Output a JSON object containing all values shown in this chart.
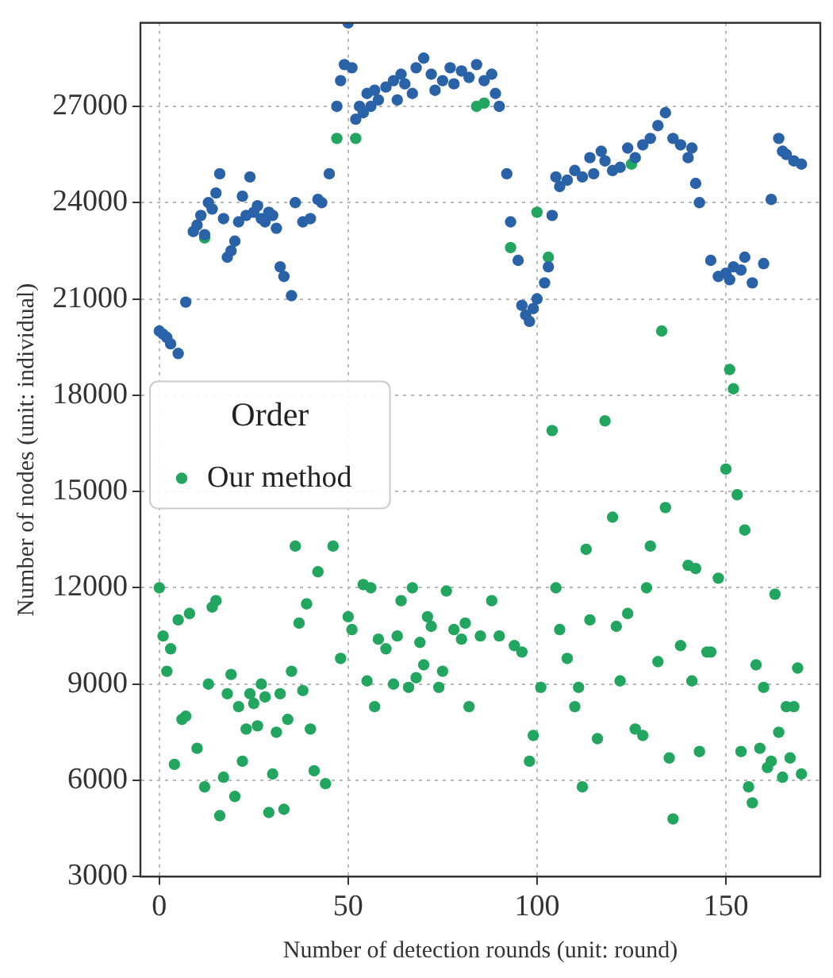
{
  "chart_data": {
    "type": "scatter",
    "xlabel": "Number of detection rounds (unit: round)",
    "ylabel": "Number of nodes (unit: individual)",
    "legend_title": "Order",
    "legend": "left",
    "grid": true,
    "marker": "circle",
    "xlim": [
      -5,
      175
    ],
    "xticks": [
      0,
      50,
      100,
      150
    ],
    "ylim": [
      3000,
      29600
    ],
    "yticks": [
      3000,
      6000,
      9000,
      12000,
      15000,
      18000,
      21000,
      24000,
      27000
    ],
    "series": [
      {
        "color": "#2a62a8",
        "x": [
          0,
          1,
          2,
          3,
          5,
          7,
          9,
          10,
          11,
          12,
          13,
          14,
          15,
          16,
          17,
          18,
          19,
          20,
          21,
          22,
          23,
          24,
          25,
          26,
          27,
          28,
          29,
          30,
          31,
          32,
          33,
          35,
          36,
          38,
          40,
          42,
          43,
          45,
          47,
          48,
          49,
          50,
          51,
          52,
          53,
          54,
          55,
          56,
          57,
          58,
          60,
          62,
          63,
          64,
          65,
          67,
          68,
          70,
          72,
          73,
          75,
          77,
          78,
          80,
          82,
          84,
          86,
          88,
          89,
          90,
          92,
          93,
          95,
          96,
          97,
          98,
          99,
          100,
          102,
          103,
          104,
          105,
          106,
          108,
          110,
          112,
          114,
          115,
          117,
          118,
          120,
          122,
          124,
          126,
          128,
          130,
          132,
          134,
          136,
          138,
          140,
          141,
          142,
          143,
          146,
          148,
          150,
          151,
          152,
          154,
          155,
          157,
          160,
          162,
          164,
          165,
          166,
          168,
          170
        ],
        "values": [
          20000,
          19900,
          19800,
          19600,
          19300,
          20900,
          23100,
          23300,
          23600,
          23000,
          24000,
          23800,
          24300,
          24900,
          23500,
          22300,
          22500,
          22800,
          23400,
          24200,
          23600,
          24800,
          23700,
          23900,
          23500,
          23400,
          23700,
          23600,
          23200,
          22000,
          21700,
          21100,
          24000,
          23400,
          23500,
          24100,
          24000,
          24900,
          27000,
          27800,
          28300,
          29600,
          28200,
          26600,
          27000,
          26800,
          27400,
          27000,
          27500,
          27200,
          27600,
          27800,
          27200,
          28000,
          27700,
          27400,
          28200,
          28500,
          28000,
          27500,
          27800,
          28200,
          27700,
          28100,
          27900,
          28300,
          27800,
          28000,
          27400,
          27000,
          24900,
          23400,
          22200,
          20800,
          20500,
          20300,
          20700,
          21000,
          21500,
          22000,
          23600,
          24800,
          24500,
          24700,
          25000,
          24800,
          25400,
          24900,
          25600,
          25300,
          25000,
          25100,
          25700,
          25400,
          25800,
          26000,
          26400,
          26800,
          26000,
          25800,
          25400,
          25700,
          24600,
          24000,
          22200,
          21700,
          21800,
          21600,
          22000,
          21900,
          22300,
          21500,
          22100,
          24100,
          26000,
          25600,
          25500,
          25300,
          25200
        ]
      },
      {
        "name": "Our method",
        "color": "#22a55e",
        "x": [
          0,
          1,
          2,
          3,
          4,
          5,
          6,
          7,
          8,
          10,
          12,
          12,
          13,
          14,
          15,
          16,
          17,
          18,
          19,
          20,
          21,
          22,
          23,
          24,
          25,
          26,
          27,
          28,
          29,
          30,
          31,
          32,
          33,
          34,
          35,
          36,
          37,
          38,
          39,
          40,
          41,
          42,
          44,
          46,
          47,
          48,
          50,
          51,
          52,
          54,
          55,
          56,
          57,
          58,
          60,
          62,
          63,
          64,
          66,
          67,
          68,
          69,
          70,
          71,
          72,
          74,
          75,
          76,
          78,
          80,
          81,
          82,
          84,
          85,
          86,
          88,
          90,
          93,
          94,
          96,
          98,
          99,
          100,
          101,
          103,
          104,
          105,
          106,
          108,
          110,
          111,
          112,
          113,
          114,
          116,
          118,
          120,
          121,
          122,
          124,
          125,
          126,
          128,
          129,
          130,
          132,
          133,
          134,
          135,
          136,
          138,
          140,
          141,
          142,
          143,
          145,
          146,
          148,
          150,
          151,
          152,
          153,
          154,
          155,
          156,
          157,
          158,
          159,
          160,
          161,
          162,
          163,
          164,
          165,
          166,
          167,
          168,
          169,
          170
        ],
        "values": [
          12000,
          10500,
          9400,
          10100,
          6500,
          11000,
          7900,
          8000,
          11200,
          7000,
          5800,
          22900,
          9000,
          11400,
          11600,
          4900,
          6100,
          8700,
          9300,
          5500,
          8300,
          6600,
          7600,
          8700,
          8400,
          7700,
          9000,
          8600,
          5000,
          6200,
          7500,
          8700,
          5100,
          7900,
          9400,
          13300,
          10900,
          8800,
          11500,
          7600,
          6300,
          12500,
          5900,
          13300,
          26000,
          9800,
          11100,
          10700,
          26000,
          12100,
          9100,
          12000,
          8300,
          10400,
          10100,
          9000,
          10500,
          11600,
          8900,
          12000,
          9200,
          10300,
          9600,
          11100,
          10800,
          8900,
          9400,
          11900,
          10700,
          10400,
          10900,
          8300,
          27000,
          10500,
          27100,
          11600,
          10500,
          22600,
          10200,
          10000,
          6600,
          7400,
          23700,
          8900,
          22300,
          16900,
          12000,
          10700,
          9800,
          8300,
          8900,
          5800,
          13200,
          11000,
          7300,
          17200,
          14200,
          10800,
          9100,
          11200,
          25200,
          7600,
          7400,
          12000,
          13300,
          9700,
          20000,
          14500,
          6700,
          4800,
          10200,
          12700,
          9100,
          12600,
          6900,
          10000,
          10000,
          12300,
          15700,
          18800,
          18200,
          14900,
          6900,
          13800,
          5800,
          5300,
          9600,
          7000,
          8900,
          6400,
          6600,
          11800,
          7500,
          6100,
          8300,
          6700,
          8300,
          9500,
          6200
        ]
      }
    ]
  }
}
